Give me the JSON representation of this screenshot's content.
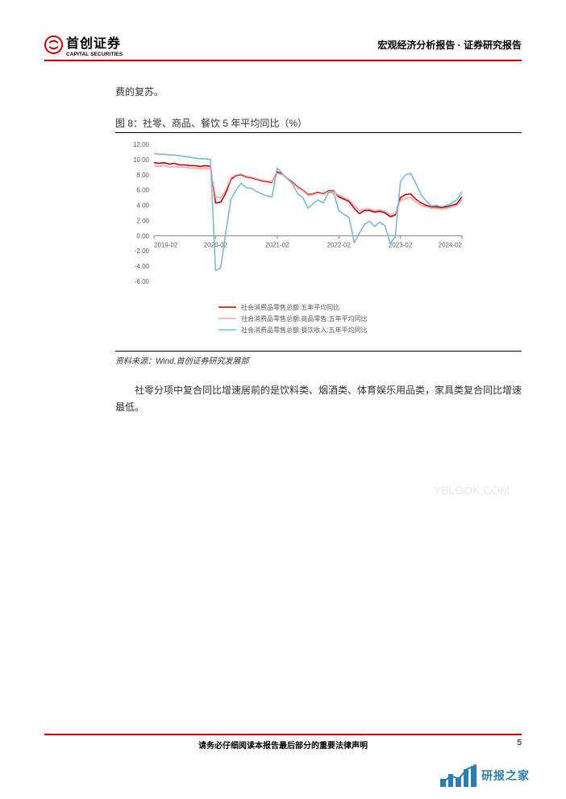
{
  "header": {
    "brand_cn": "首创证券",
    "brand_en": "CAPITAL SECURITIES",
    "doc_title": "宏观经济分析报告 · 证券研究报告",
    "logo_color": "#c00000"
  },
  "body": {
    "lead_fragment": "费的复苏。",
    "paragraph2": "社零分项中复合同比增速居前的是饮料类、烟酒类、体育娱乐用品类，家具类复合同比增速最低。"
  },
  "chart": {
    "title": "图 8：社零、商品、餐饮 5 年平均同比（%）",
    "source": "资料来源：Wind,首创证券研究发展部",
    "type": "line",
    "background_color": "#ffffff",
    "grid_color": "#d9d9d9",
    "axis_color": "#808080",
    "label_fontsize": 9,
    "tick_fontsize": 8,
    "legend_fontsize": 8,
    "line_width": 1.6,
    "ylim": [
      -6,
      12
    ],
    "ytick_step": 2,
    "ytick_labels": [
      "-6.00",
      "-4.00",
      "-2.00",
      "0.00",
      "2.00",
      "4.00",
      "6.00",
      "8.00",
      "10.00",
      "12.00"
    ],
    "xtick_labels": [
      "2019-02",
      "2020-02",
      "2021-02",
      "2022-02",
      "2023-02",
      "2024-02"
    ],
    "xlim_index": [
      0,
      60
    ],
    "series": [
      {
        "name": "社会消费品零售总额:五年平均同比",
        "color": "#c00000",
        "values": [
          9.6,
          9.5,
          9.6,
          9.4,
          9.5,
          9.3,
          9.3,
          9.2,
          9.2,
          9.1,
          9.2,
          9.1,
          4.3,
          4.4,
          5.6,
          7.4,
          7.9,
          8.0,
          7.7,
          7.6,
          7.4,
          7.2,
          7.1,
          7.0,
          8.4,
          8.1,
          7.5,
          7.0,
          6.4,
          6.0,
          5.4,
          5.5,
          5.7,
          5.5,
          5.9,
          5.9,
          5.1,
          4.8,
          4.5,
          3.6,
          2.9,
          3.3,
          3.3,
          3.1,
          3.2,
          3.0,
          2.5,
          2.7,
          5.0,
          5.4,
          5.5,
          4.8,
          4.3,
          4.0,
          3.8,
          3.8,
          3.7,
          3.8,
          4.0,
          4.2,
          5.1
        ]
      },
      {
        "name": "社会消费品零售总额:商品零售:五年平均同比",
        "color": "#f4a6a6",
        "values": [
          9.2,
          9.1,
          9.2,
          9.0,
          9.1,
          9.0,
          9.0,
          8.9,
          8.9,
          8.8,
          8.9,
          8.8,
          5.1,
          5.0,
          6.0,
          7.6,
          8.0,
          8.1,
          7.8,
          7.7,
          7.5,
          7.3,
          7.2,
          7.1,
          8.2,
          8.0,
          7.4,
          6.9,
          6.3,
          5.9,
          5.3,
          5.4,
          5.6,
          5.4,
          5.8,
          5.8,
          5.3,
          5.0,
          4.7,
          4.0,
          3.3,
          3.5,
          3.5,
          3.3,
          3.4,
          3.2,
          2.8,
          2.9,
          4.6,
          4.9,
          5.0,
          4.4,
          4.0,
          3.8,
          3.6,
          3.6,
          3.5,
          3.6,
          3.8,
          4.0,
          4.7
        ]
      },
      {
        "name": "社会消费品零售总额:餐饮收入:五年平均同比",
        "color": "#7fb8d8",
        "values": [
          10.8,
          10.7,
          10.7,
          10.6,
          10.6,
          10.5,
          10.4,
          10.3,
          10.2,
          10.1,
          10.1,
          10.0,
          -4.6,
          -4.2,
          0.5,
          4.8,
          6.0,
          6.9,
          6.3,
          6.2,
          5.8,
          5.5,
          5.2,
          5.1,
          8.9,
          8.2,
          7.5,
          6.8,
          5.5,
          5.0,
          3.6,
          4.2,
          4.7,
          4.3,
          5.7,
          5.6,
          3.3,
          2.8,
          2.4,
          -0.9,
          0.3,
          1.5,
          1.9,
          1.2,
          1.8,
          1.3,
          -1.0,
          -0.2,
          7.1,
          8.0,
          8.2,
          6.9,
          5.4,
          4.6,
          3.9,
          4.0,
          3.8,
          4.0,
          4.3,
          4.7,
          5.8
        ]
      }
    ]
  },
  "footer": {
    "disclaimer": "请务必仔细阅读本报告最后部分的重要法律声明",
    "page_number": "5"
  },
  "watermark": "YBLOOK.COM",
  "brand_footer": "研报之家"
}
